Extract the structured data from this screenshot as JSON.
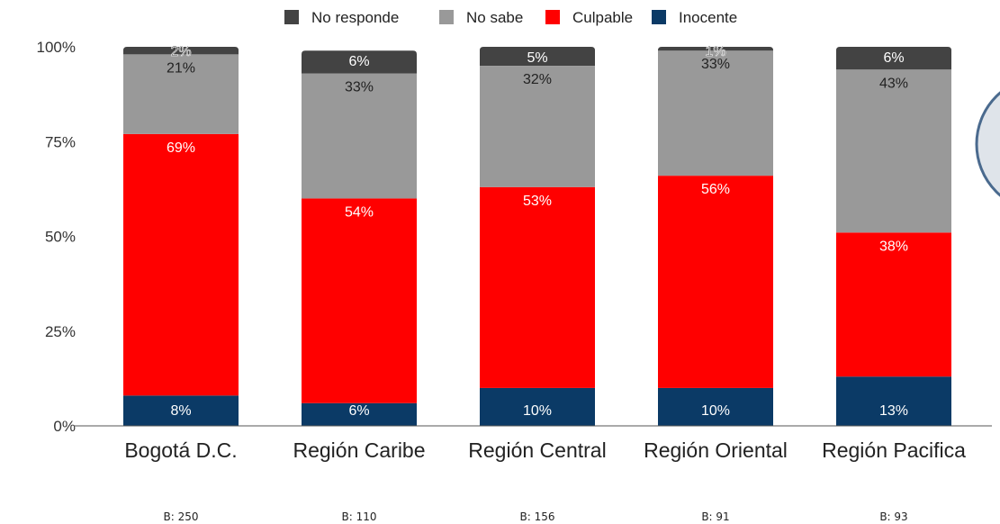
{
  "chart_data": {
    "type": "bar",
    "stacked": true,
    "categories": [
      "Bogotá D.C.",
      "Región Caribe",
      "Región Central",
      "Región Oriental",
      "Región Pacifica"
    ],
    "bases": [
      "B: 250",
      "B: 110",
      "B: 156",
      "B: 91",
      "B: 93"
    ],
    "series": [
      {
        "name": "Inocente",
        "color": "#0b3a66",
        "text_color": "#ffffff",
        "values": [
          8,
          6,
          10,
          10,
          13
        ],
        "labels": [
          "8%",
          "6%",
          "10%",
          "10%",
          "13%"
        ]
      },
      {
        "name": "Culpable",
        "color": "#ff0000",
        "text_color": "#ffffff",
        "values": [
          69,
          54,
          53,
          56,
          38
        ],
        "labels": [
          "69%",
          "54%",
          "53%",
          "56%",
          "38%"
        ]
      },
      {
        "name": "No sabe",
        "color": "#999999",
        "text_color": "#222222",
        "values": [
          21,
          33,
          32,
          33,
          43
        ],
        "labels": [
          "21%",
          "33%",
          "32%",
          "33%",
          "43%"
        ]
      },
      {
        "name": "No responde",
        "color": "#434343",
        "text_color": "#ffffff",
        "values": [
          2,
          6,
          5,
          1,
          6
        ],
        "labels": [
          "2%",
          "6%",
          "5%",
          "1%",
          "6%"
        ]
      }
    ],
    "legend_order": [
      "No responde",
      "No sabe",
      "Culpable",
      "Inocente"
    ],
    "legend_position": "top",
    "yticks": [
      "0%",
      "25%",
      "50%",
      "75%",
      "100%"
    ],
    "ylim": [
      0,
      100
    ],
    "grid": false
  }
}
